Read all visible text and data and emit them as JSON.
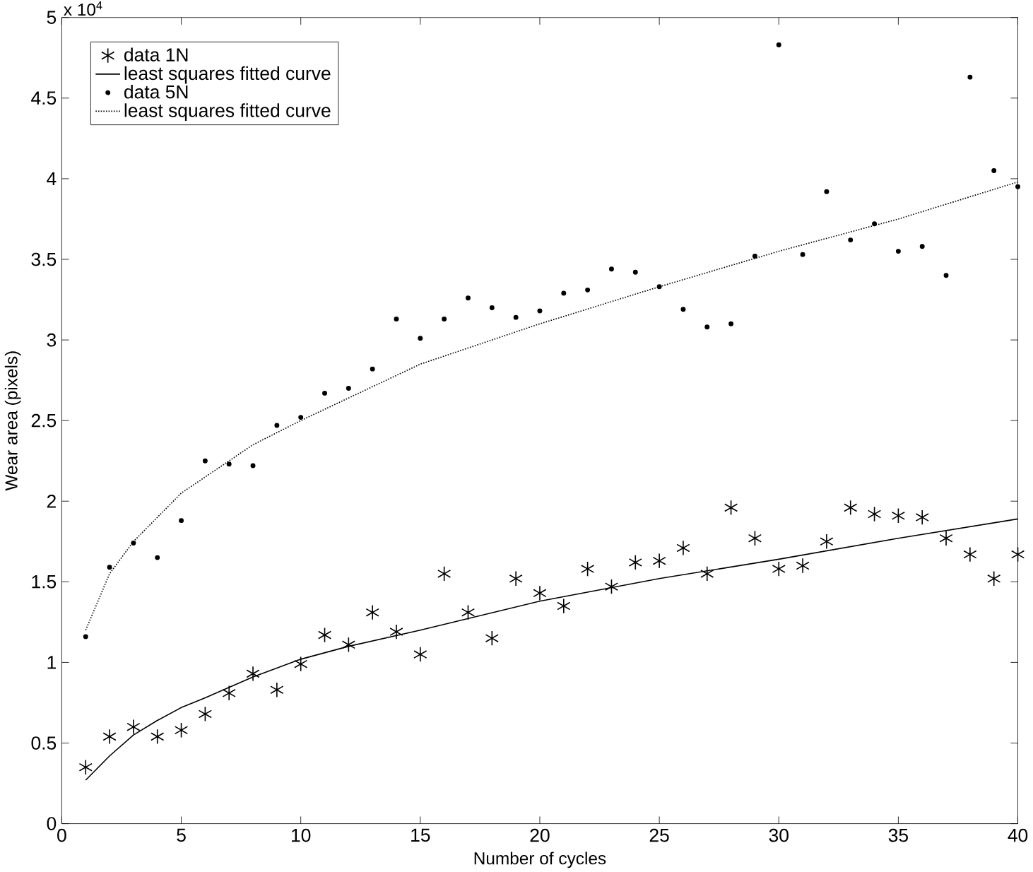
{
  "chart_data": {
    "type": "scatter",
    "xlabel": "Number of cycles",
    "ylabel": "Wear area (pixels)",
    "annotations": [
      "x 10$^{4}$"
    ],
    "xlim": [
      0,
      40
    ],
    "xticks": [
      0,
      5,
      10,
      15,
      20,
      25,
      30,
      35,
      40
    ],
    "ylim": [
      0,
      5
    ],
    "yticks": [
      0,
      0.5,
      1,
      1.5,
      2,
      2.5,
      3,
      3.5,
      4,
      4.5,
      5
    ],
    "grid": false,
    "legend": "top left",
    "series": [
      {
        "name": "data 1N",
        "marker": "cross",
        "color": "#000000",
        "x": [
          1,
          2,
          3,
          4,
          5,
          6,
          7,
          8,
          9,
          10,
          11,
          12,
          13,
          14,
          15,
          16,
          17,
          18,
          19,
          20,
          21,
          22,
          23,
          24,
          25,
          26,
          27,
          28,
          29,
          30,
          31,
          32,
          33,
          34,
          35,
          36,
          37,
          38,
          39,
          40
        ],
        "values": [
          0.35,
          0.54,
          0.6,
          0.54,
          0.58,
          0.68,
          0.81,
          0.93,
          0.83,
          0.99,
          1.17,
          1.11,
          1.31,
          1.19,
          1.05,
          1.55,
          1.31,
          1.15,
          1.52,
          1.43,
          1.35,
          1.58,
          1.47,
          1.62,
          1.63,
          1.71,
          1.55,
          1.96,
          1.77,
          1.58,
          1.6,
          1.75,
          1.96,
          1.92,
          1.91,
          1.9,
          1.77,
          1.67,
          1.52,
          1.67
        ]
      },
      {
        "name": "least squares fitted curve",
        "type": "line",
        "marker": "none",
        "line_style": "solid",
        "color": "#000000",
        "x": [
          1,
          2,
          3,
          4,
          5,
          6,
          8,
          10,
          12,
          15,
          20,
          25,
          30,
          35,
          40
        ],
        "values": [
          0.27,
          0.42,
          0.55,
          0.64,
          0.72,
          0.78,
          0.91,
          1.02,
          1.1,
          1.2,
          1.38,
          1.52,
          1.64,
          1.77,
          1.89
        ]
      },
      {
        "name": "data 5N",
        "marker": "circle",
        "color": "#000000",
        "x": [
          1,
          2,
          3,
          4,
          5,
          6,
          7,
          8,
          9,
          10,
          11,
          12,
          13,
          14,
          15,
          16,
          17,
          18,
          19,
          20,
          21,
          22,
          23,
          24,
          25,
          26,
          27,
          28,
          29,
          30,
          31,
          32,
          33,
          34,
          35,
          36,
          37,
          38,
          39,
          40
        ],
        "values": [
          1.16,
          1.59,
          1.74,
          1.65,
          1.88,
          2.25,
          2.23,
          2.22,
          2.47,
          2.52,
          2.67,
          2.7,
          2.82,
          3.13,
          3.01,
          3.13,
          3.26,
          3.2,
          3.14,
          3.18,
          3.29,
          3.31,
          3.44,
          3.42,
          3.33,
          3.19,
          3.08,
          3.1,
          3.52,
          4.83,
          3.53,
          3.92,
          3.62,
          3.72,
          3.55,
          3.58,
          3.4,
          4.63,
          4.05,
          3.95
        ]
      },
      {
        "name": "least squares fitted curve",
        "type": "line",
        "marker": "none",
        "line_style": "dotted",
        "color": "#000000",
        "x": [
          1,
          2,
          3,
          5,
          8,
          10,
          15,
          20,
          25,
          30,
          35,
          40
        ],
        "values": [
          1.2,
          1.55,
          1.75,
          2.05,
          2.35,
          2.5,
          2.85,
          3.1,
          3.33,
          3.55,
          3.75,
          3.98
        ]
      }
    ]
  }
}
